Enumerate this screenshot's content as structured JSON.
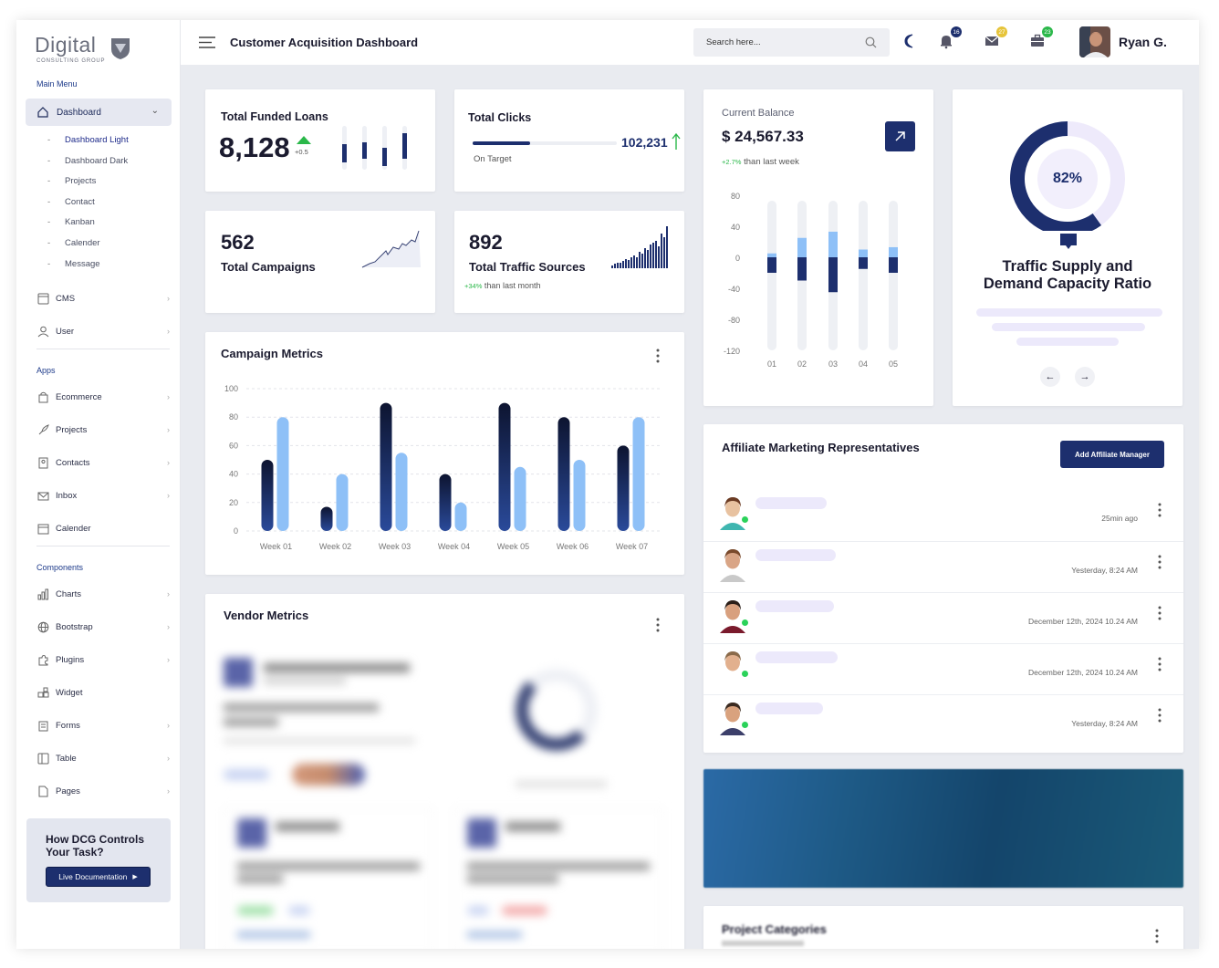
{
  "brand": {
    "word": "Digital",
    "sub": "CONSULTING GROUP"
  },
  "header": {
    "title": "Customer Acquisition Dashboard",
    "search_placeholder": "Search here...",
    "badges": {
      "notifications": "16",
      "messages": "27",
      "tasks": "23"
    },
    "user_name": "Ryan G."
  },
  "sidebar": {
    "main_menu_label": "Main Menu",
    "dashboard_label": "Dashboard",
    "sub_items": [
      "Dashboard Light",
      "Dashboard Dark",
      "Projects",
      "Contact",
      "Kanban",
      "Calender",
      "Message"
    ],
    "main_items": [
      {
        "label": "CMS",
        "icon": "cms-icon"
      },
      {
        "label": "User",
        "icon": "user-icon"
      }
    ],
    "apps_label": "Apps",
    "apps_items": [
      {
        "label": "Ecommerce",
        "icon": "bag-icon"
      },
      {
        "label": "Projects",
        "icon": "rocket-icon"
      },
      {
        "label": "Contacts",
        "icon": "contact-card-icon"
      },
      {
        "label": "Inbox",
        "icon": "mail-icon"
      },
      {
        "label": "Calender",
        "icon": "calendar-icon"
      }
    ],
    "components_label": "Components",
    "components_items": [
      {
        "label": "Charts",
        "icon": "bar-chart-icon"
      },
      {
        "label": "Bootstrap",
        "icon": "globe-icon"
      },
      {
        "label": "Plugins",
        "icon": "puzzle-icon"
      },
      {
        "label": "Widget",
        "icon": "widget-icon"
      },
      {
        "label": "Forms",
        "icon": "form-icon"
      },
      {
        "label": "Table",
        "icon": "table-icon"
      },
      {
        "label": "Pages",
        "icon": "page-icon"
      }
    ],
    "help": {
      "title": "How DCG Controls Your Task?",
      "button": "Live Documentation"
    }
  },
  "kpis": {
    "funded_loans": {
      "label": "Total Funded Loans",
      "value": "8,128",
      "delta": "+0.5"
    },
    "clicks": {
      "label": "Total Clicks",
      "value": "102,231",
      "status": "On Target",
      "progress": 0.4
    },
    "campaigns": {
      "label": "Total Campaigns",
      "value": "562"
    },
    "traffic_sources": {
      "label": "Total Traffic Sources",
      "value": "892",
      "delta": "+34%",
      "delta_text": "than last month"
    }
  },
  "balance": {
    "label": "Current Balance",
    "value": "$ 24,567.33",
    "delta": "+2.7%",
    "delta_text": "than last week"
  },
  "ratio": {
    "percent": "82%",
    "percent_value": 82,
    "title_line1": "Traffic Supply and",
    "title_line2": "Demand Capacity Ratio"
  },
  "campaign_metrics": {
    "title": "Campaign Metrics"
  },
  "vendor_metrics": {
    "title": "Vendor Metrics"
  },
  "affiliates": {
    "title": "Affiliate Marketing Representatives",
    "button": "Add Affiliate Manager",
    "rows": [
      {
        "time": "25min ago",
        "online": true
      },
      {
        "time": "Yesterday, 8:24 AM",
        "online": false
      },
      {
        "time": "December 12th, 2024 10.24 AM",
        "online": true
      },
      {
        "time": "December 12th, 2024 10.24 AM",
        "online": true
      },
      {
        "time": "Yesterday, 8:24 AM",
        "online": true
      }
    ]
  },
  "project_categories": {
    "title": "Project Categories"
  },
  "colors": {
    "navy": "#1d2f6e",
    "light_blue": "#8ec0f7",
    "green": "#2bb84a",
    "lavender": "#ece9fb"
  },
  "chart_data": [
    {
      "type": "bar",
      "title": "Campaign Metrics",
      "categories": [
        "Week 01",
        "Week 02",
        "Week 03",
        "Week 04",
        "Week 05",
        "Week 06",
        "Week 07"
      ],
      "series": [
        {
          "values": [
            50,
            17,
            90,
            40,
            90,
            80,
            60
          ]
        },
        {
          "values": [
            80,
            40,
            55,
            20,
            45,
            50,
            80
          ]
        }
      ],
      "ylim": [
        0,
        100
      ],
      "yticks": [
        0,
        20,
        40,
        60,
        80,
        100
      ]
    },
    {
      "type": "bar",
      "title": "Current Balance",
      "categories": [
        "01",
        "02",
        "03",
        "04",
        "05"
      ],
      "series": [
        {
          "values": [
            5,
            25,
            33,
            10,
            13
          ]
        },
        {
          "values": [
            -20,
            -30,
            -45,
            -15,
            -20
          ]
        }
      ],
      "ylim": [
        -120,
        80
      ],
      "yticks": [
        80,
        40,
        0,
        -40,
        -80,
        -120
      ]
    }
  ]
}
